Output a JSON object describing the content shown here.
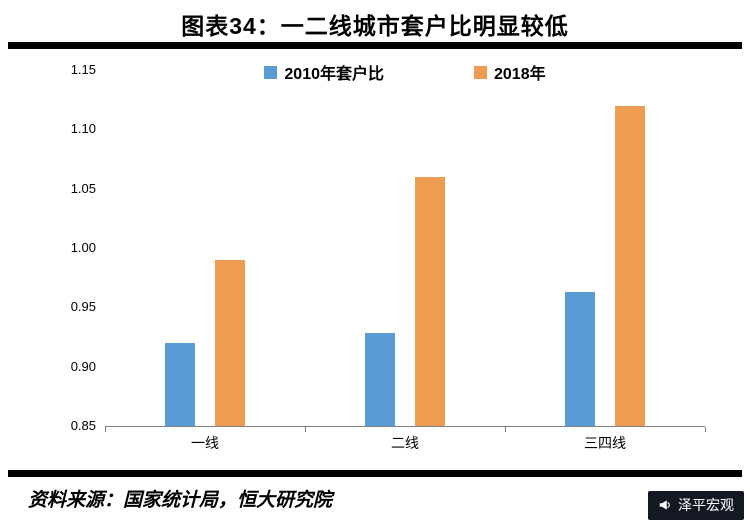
{
  "header": {
    "title": "图表34：一二线城市套户比明显较低"
  },
  "chart_data": {
    "type": "bar",
    "title": "图表34：一二线城市套户比明显较低",
    "categories": [
      "一线",
      "二线",
      "三四线"
    ],
    "series": [
      {
        "name": "2010年套户比",
        "color": "#5B9BD5",
        "values": [
          0.92,
          0.928,
          0.963
        ]
      },
      {
        "name": "2018年",
        "color": "#ED9C52",
        "values": [
          0.99,
          1.06,
          1.12
        ]
      }
    ],
    "ylim": [
      0.85,
      1.15
    ],
    "yticks": [
      0.85,
      0.9,
      0.95,
      1.0,
      1.05,
      1.1,
      1.15
    ],
    "ytick_format": "2dp",
    "grid": false,
    "legend_position": "top-center"
  },
  "footer": {
    "source": "资料来源：国家统计局，恒大研究院",
    "badge_label": "泽平宏观",
    "badge_icon": "megaphone-icon",
    "badge_bg": "#141822"
  }
}
